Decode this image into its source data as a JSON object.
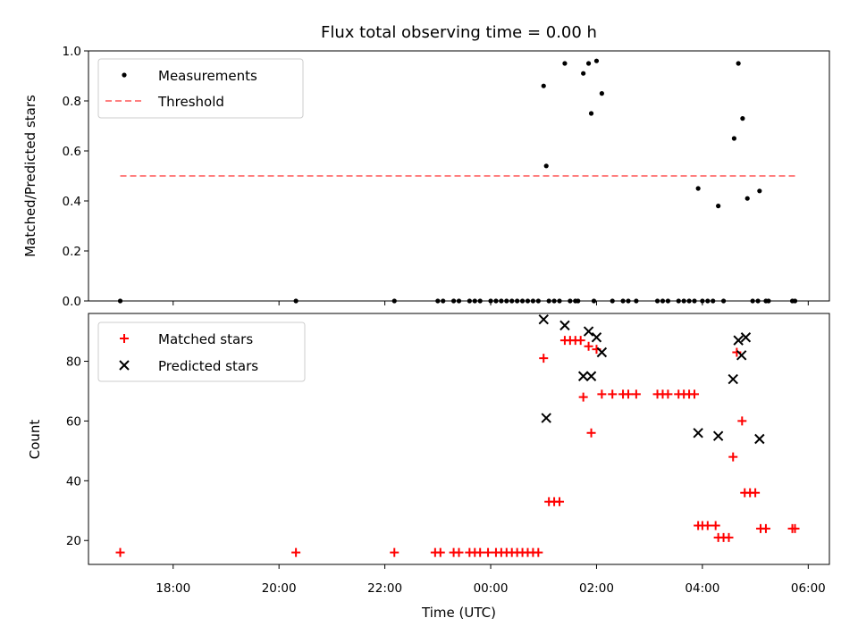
{
  "chart_data": {
    "title": "Flux total observing time = 0.00 h",
    "xlabel": "Time (UTC)",
    "x_ticks": [
      "18:00",
      "20:00",
      "22:00",
      "00:00",
      "02:00",
      "04:00",
      "06:00"
    ],
    "x_tick_hours": [
      18,
      20,
      22,
      24,
      26,
      28,
      30
    ],
    "xlim_hours": [
      16.4,
      30.4
    ],
    "colors": {
      "matched": "#ff0000",
      "predicted": "#000000",
      "measurements": "#000000",
      "threshold": "#ff7f7f"
    },
    "panels": [
      {
        "type": "scatter",
        "ylabel": "Matched/Predicted stars",
        "ylim": [
          0,
          1.0
        ],
        "y_ticks": [
          "0.0",
          "0.2",
          "0.4",
          "0.6",
          "0.8",
          "1.0"
        ],
        "y_tick_values": [
          0,
          0.2,
          0.4,
          0.6,
          0.8,
          1.0
        ],
        "legend": {
          "placement": "upper-left",
          "entries": [
            "Measurements",
            "Threshold"
          ]
        },
        "threshold": {
          "name": "Threshold",
          "y": 0.5,
          "x_from_hours": 17.0,
          "x_to_hours": 29.75
        },
        "series": [
          {
            "name": "Measurements",
            "points": [
              [
                17.0,
                0
              ],
              [
                20.32,
                0
              ],
              [
                22.18,
                0
              ],
              [
                23.0,
                0
              ],
              [
                23.1,
                0
              ],
              [
                23.3,
                0
              ],
              [
                23.4,
                0
              ],
              [
                23.6,
                0
              ],
              [
                23.7,
                0
              ],
              [
                23.8,
                0
              ],
              [
                24.0,
                0
              ],
              [
                24.1,
                0
              ],
              [
                24.2,
                0
              ],
              [
                24.3,
                0
              ],
              [
                24.4,
                0
              ],
              [
                24.5,
                0
              ],
              [
                24.6,
                0
              ],
              [
                24.7,
                0
              ],
              [
                24.8,
                0
              ],
              [
                24.9,
                0
              ],
              [
                25.0,
                0.86
              ],
              [
                25.05,
                0.54
              ],
              [
                25.1,
                0
              ],
              [
                25.2,
                0
              ],
              [
                25.3,
                0
              ],
              [
                25.4,
                0.95
              ],
              [
                25.5,
                0
              ],
              [
                25.6,
                0
              ],
              [
                25.65,
                0
              ],
              [
                25.75,
                0.91
              ],
              [
                25.85,
                0.95
              ],
              [
                25.9,
                0.75
              ],
              [
                25.95,
                0
              ],
              [
                26.0,
                0.96
              ],
              [
                26.1,
                0.83
              ],
              [
                26.3,
                0
              ],
              [
                26.5,
                0
              ],
              [
                26.6,
                0
              ],
              [
                26.75,
                0
              ],
              [
                27.15,
                0
              ],
              [
                27.25,
                0
              ],
              [
                27.35,
                0
              ],
              [
                27.55,
                0
              ],
              [
                27.65,
                0
              ],
              [
                27.75,
                0
              ],
              [
                27.85,
                0
              ],
              [
                27.92,
                0.45
              ],
              [
                28.0,
                0
              ],
              [
                28.1,
                0
              ],
              [
                28.2,
                0
              ],
              [
                28.3,
                0.38
              ],
              [
                28.4,
                0
              ],
              [
                28.6,
                0.65
              ],
              [
                28.68,
                0.95
              ],
              [
                28.76,
                0.73
              ],
              [
                28.85,
                0.41
              ],
              [
                28.95,
                0
              ],
              [
                29.05,
                0
              ],
              [
                29.08,
                0.44
              ],
              [
                29.2,
                0
              ],
              [
                29.25,
                0
              ],
              [
                29.7,
                0
              ],
              [
                29.75,
                0
              ]
            ]
          }
        ]
      },
      {
        "type": "scatter",
        "ylabel": "Count",
        "ylim": [
          12,
          96
        ],
        "y_ticks": [
          "20",
          "40",
          "60",
          "80"
        ],
        "y_tick_values": [
          20,
          40,
          60,
          80
        ],
        "legend": {
          "placement": "upper-left",
          "entries": [
            "Matched stars",
            "Predicted stars"
          ]
        },
        "series": [
          {
            "name": "Matched stars",
            "marker": "plus",
            "points": [
              [
                17.0,
                16
              ],
              [
                20.32,
                16
              ],
              [
                22.18,
                16
              ],
              [
                22.95,
                16
              ],
              [
                23.05,
                16
              ],
              [
                23.3,
                16
              ],
              [
                23.4,
                16
              ],
              [
                23.6,
                16
              ],
              [
                23.7,
                16
              ],
              [
                23.8,
                16
              ],
              [
                23.95,
                16
              ],
              [
                24.1,
                16
              ],
              [
                24.2,
                16
              ],
              [
                24.3,
                16
              ],
              [
                24.4,
                16
              ],
              [
                24.5,
                16
              ],
              [
                24.6,
                16
              ],
              [
                24.7,
                16
              ],
              [
                24.8,
                16
              ],
              [
                24.9,
                16
              ],
              [
                25.0,
                81
              ],
              [
                25.1,
                33
              ],
              [
                25.2,
                33
              ],
              [
                25.3,
                33
              ],
              [
                25.4,
                87
              ],
              [
                25.5,
                87
              ],
              [
                25.6,
                87
              ],
              [
                25.7,
                87
              ],
              [
                25.75,
                68
              ],
              [
                25.85,
                85
              ],
              [
                25.9,
                56
              ],
              [
                26.0,
                84
              ],
              [
                26.1,
                69
              ],
              [
                26.3,
                69
              ],
              [
                26.5,
                69
              ],
              [
                26.6,
                69
              ],
              [
                26.75,
                69
              ],
              [
                27.15,
                69
              ],
              [
                27.25,
                69
              ],
              [
                27.35,
                69
              ],
              [
                27.55,
                69
              ],
              [
                27.65,
                69
              ],
              [
                27.75,
                69
              ],
              [
                27.85,
                69
              ],
              [
                27.92,
                25
              ],
              [
                28.0,
                25
              ],
              [
                28.1,
                25
              ],
              [
                28.25,
                25
              ],
              [
                28.3,
                21
              ],
              [
                28.4,
                21
              ],
              [
                28.5,
                21
              ],
              [
                28.58,
                48
              ],
              [
                28.65,
                83
              ],
              [
                28.75,
                60
              ],
              [
                28.8,
                36
              ],
              [
                28.9,
                36
              ],
              [
                29.0,
                36
              ],
              [
                29.1,
                24
              ],
              [
                29.2,
                24
              ],
              [
                29.7,
                24
              ],
              [
                29.75,
                24
              ]
            ]
          },
          {
            "name": "Predicted stars",
            "marker": "x",
            "points": [
              [
                25.0,
                94
              ],
              [
                25.05,
                61
              ],
              [
                25.4,
                92
              ],
              [
                25.75,
                75
              ],
              [
                25.85,
                90
              ],
              [
                25.9,
                75
              ],
              [
                26.0,
                88
              ],
              [
                26.1,
                83
              ],
              [
                27.92,
                56
              ],
              [
                28.3,
                55
              ],
              [
                28.58,
                74
              ],
              [
                28.68,
                87
              ],
              [
                28.74,
                82
              ],
              [
                28.82,
                88
              ],
              [
                29.08,
                54
              ]
            ]
          }
        ]
      }
    ]
  }
}
